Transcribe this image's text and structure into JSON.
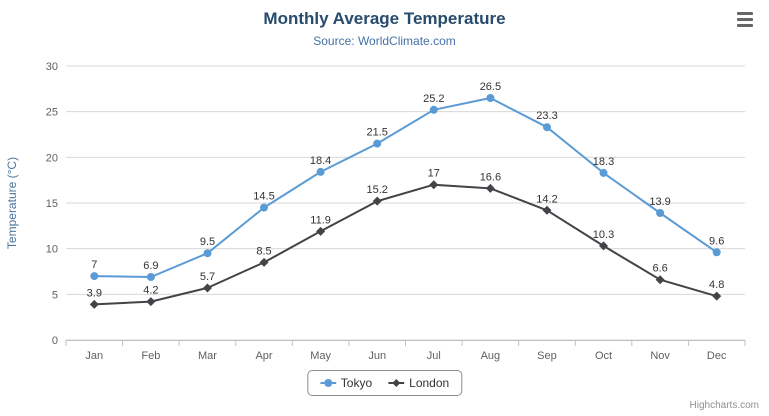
{
  "chart_data": {
    "type": "line",
    "title": "Monthly Average Temperature",
    "subtitle": "Source: WorldClimate.com",
    "categories": [
      "Jan",
      "Feb",
      "Mar",
      "Apr",
      "May",
      "Jun",
      "Jul",
      "Aug",
      "Sep",
      "Oct",
      "Nov",
      "Dec"
    ],
    "series": [
      {
        "name": "Tokyo",
        "color": "#5b9bd5",
        "marker": "circle",
        "values": [
          7,
          6.9,
          9.5,
          14.5,
          18.4,
          21.5,
          25.2,
          26.5,
          23.3,
          18.3,
          13.9,
          9.6
        ]
      },
      {
        "name": "London",
        "color": "#434348",
        "marker": "diamond",
        "values": [
          3.9,
          4.2,
          5.7,
          8.5,
          11.9,
          15.2,
          17,
          16.6,
          14.2,
          10.3,
          6.6,
          4.8
        ]
      }
    ],
    "xlabel": "",
    "ylabel": "Temperature (°C)",
    "ylim": [
      0,
      30
    ],
    "yticks": [
      0,
      5,
      10,
      15,
      20,
      25,
      30
    ],
    "grid": true,
    "data_labels": true,
    "legend_position": "bottom"
  },
  "toolbar": {
    "export_menu_icon": "hamburger-icon"
  },
  "credits": "Highcharts.com",
  "colors": {
    "title": "#274b6d",
    "subtitle": "#4572a7",
    "axis_labels": "#606060",
    "gridline": "#d8d8d8",
    "axis_line": "#c0c0c0"
  }
}
